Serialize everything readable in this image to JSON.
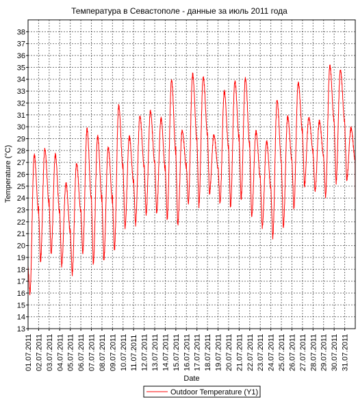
{
  "chart_data": {
    "type": "line",
    "title": "Температура в Севастополе - данные за июль 2011 года",
    "xlabel": "Date",
    "ylabel": "Temperature (°C)",
    "ylim": [
      13,
      39
    ],
    "y_ticks": [
      13,
      14,
      15,
      16,
      17,
      18,
      19,
      20,
      21,
      22,
      23,
      24,
      25,
      26,
      27,
      28,
      29,
      30,
      31,
      32,
      33,
      34,
      35,
      36,
      37,
      38
    ],
    "x_tick_labels": [
      "01.07.2011",
      "02.07.2011",
      "03.07.2011",
      "04.07.2011",
      "05.07.2011",
      "06.07.2011",
      "07.07.2011",
      "08.07.2011",
      "09.07.2011",
      "10.07.2011",
      "11.07.2011",
      "12.07.2011",
      "13.07.2011",
      "14.07.2011",
      "15.07.2011",
      "16.07.2011",
      "17.07.2011",
      "18.07.2011",
      "19.07.2011",
      "20.07.2011",
      "21.07.2011",
      "22.07.2011",
      "23.07.2011",
      "24.07.2011",
      "25.07.2011",
      "26.07.2011",
      "27.07.2011",
      "28.07.2011",
      "29.07.2011",
      "30.07.2011",
      "31.07.2011"
    ],
    "x_range": [
      "01.07.2011",
      "01.08.2011"
    ],
    "grid": true,
    "legend_position": "bottom-center",
    "series": [
      {
        "name": "Outdoor Temperature (Y1)",
        "color": "#ff0000",
        "daily_min": [
          16.3,
          19.0,
          19.6,
          18.6,
          17.9,
          19.6,
          18.7,
          19.1,
          19.8,
          21.7,
          22.0,
          22.8,
          22.9,
          22.4,
          21.9,
          23.6,
          23.4,
          24.5,
          23.6,
          23.3,
          23.9,
          22.4,
          21.5,
          20.6,
          21.4,
          23.0,
          24.9,
          24.4,
          23.9,
          25.1,
          25.3
        ],
        "daily_max": [
          27.3,
          27.8,
          27.3,
          24.9,
          26.6,
          29.5,
          28.9,
          28.0,
          31.5,
          28.9,
          30.7,
          31.1,
          30.5,
          33.8,
          29.5,
          34.3,
          34.1,
          29.2,
          32.9,
          33.8,
          34.1,
          29.6,
          28.8,
          32.3,
          30.9,
          33.8,
          30.9,
          30.6,
          35.3,
          35.0,
          30.1
        ],
        "last_value": 23.5,
        "points_per_day": 48,
        "units": "°C"
      }
    ]
  }
}
